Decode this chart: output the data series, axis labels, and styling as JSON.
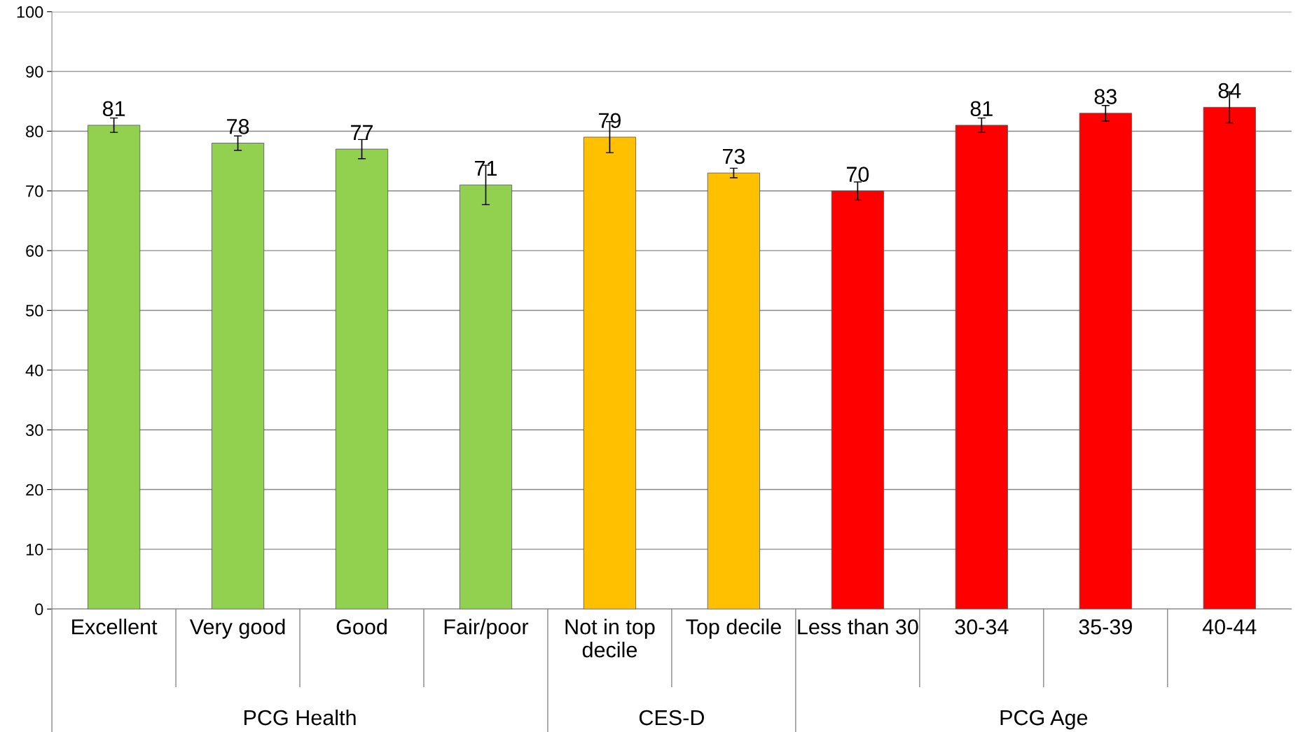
{
  "chart_data": {
    "type": "bar",
    "categories": [
      "Excellent",
      "Very good",
      "Good",
      "Fair/poor",
      "Not in top decile",
      "Top decile",
      "Less than 30",
      "30-34",
      "35-39",
      "40-44"
    ],
    "values": [
      81,
      78,
      77,
      71,
      79,
      73,
      70,
      81,
      83,
      84
    ],
    "errors": [
      1.2,
      1.2,
      1.6,
      3.3,
      2.6,
      0.8,
      1.5,
      1.2,
      1.3,
      2.6
    ],
    "colors": [
      "#92d050",
      "#92d050",
      "#92d050",
      "#92d050",
      "#ffc000",
      "#ffc000",
      "#ff0000",
      "#ff0000",
      "#ff0000",
      "#ff0000"
    ],
    "annotations": [
      "PCG Health",
      "CES-D",
      "PCG Age"
    ],
    "ylim": [
      0,
      100
    ],
    "yticks": [
      0,
      10,
      20,
      30,
      40,
      50,
      60,
      70,
      80,
      90,
      100
    ],
    "grid": "y",
    "data_labels": true
  }
}
